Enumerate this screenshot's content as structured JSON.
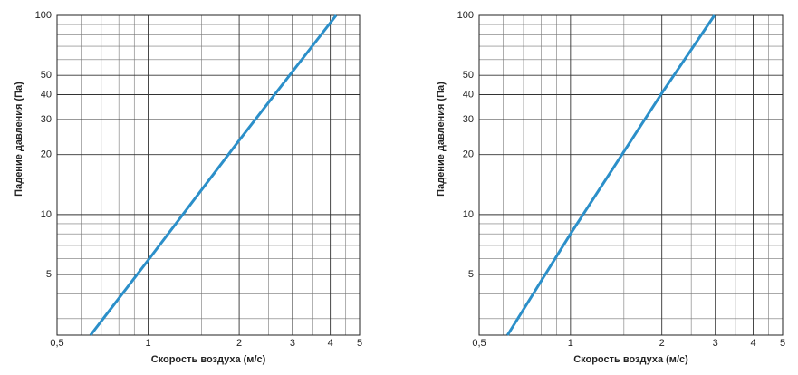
{
  "chart_data": [
    {
      "type": "line",
      "x_label": "Скорость воздуха (м/с)",
      "y_label": "Падение давления (Па)",
      "log_x": true,
      "log_y": true,
      "grid": true,
      "xlim": [
        0.5,
        5
      ],
      "ylim": [
        2.48,
        100
      ],
      "xticks": [
        {
          "value": 0.5,
          "label": "0,5"
        },
        1,
        2,
        3,
        4,
        5
      ],
      "yticks": [
        5,
        10,
        20,
        30,
        40,
        50,
        100
      ],
      "xminor": [
        0.6,
        0.7,
        0.8,
        0.9,
        1.5,
        2.5,
        3.5,
        4.5
      ],
      "yminor": [
        3,
        4,
        6,
        7,
        8,
        9,
        60,
        70,
        80,
        90
      ],
      "series": [
        {
          "color": "#2b8fc9",
          "x": [
            0.645,
            1,
            2,
            4.18
          ],
          "values": [
            2.48,
            5.9,
            23.6,
            100
          ]
        }
      ]
    },
    {
      "type": "line",
      "x_label": "Скорость воздуха (м/с)",
      "y_label": "Падение давления (Па)",
      "log_x": true,
      "log_y": true,
      "grid": true,
      "xlim": [
        0.5,
        5
      ],
      "ylim": [
        2.48,
        100
      ],
      "xticks": [
        {
          "value": 0.5,
          "label": "0,5"
        },
        1,
        2,
        3,
        4,
        5
      ],
      "yticks": [
        5,
        10,
        20,
        30,
        40,
        50,
        100
      ],
      "xminor": [
        0.6,
        0.7,
        0.8,
        0.9,
        1.5,
        2.5,
        3.5,
        4.5
      ],
      "yminor": [
        3,
        4,
        6,
        7,
        8,
        9,
        60,
        70,
        80,
        90
      ],
      "series": [
        {
          "color": "#2b8fc9",
          "x": [
            0.62,
            1,
            2,
            2.98
          ],
          "values": [
            2.48,
            8,
            40.7,
            100
          ]
        }
      ]
    }
  ]
}
